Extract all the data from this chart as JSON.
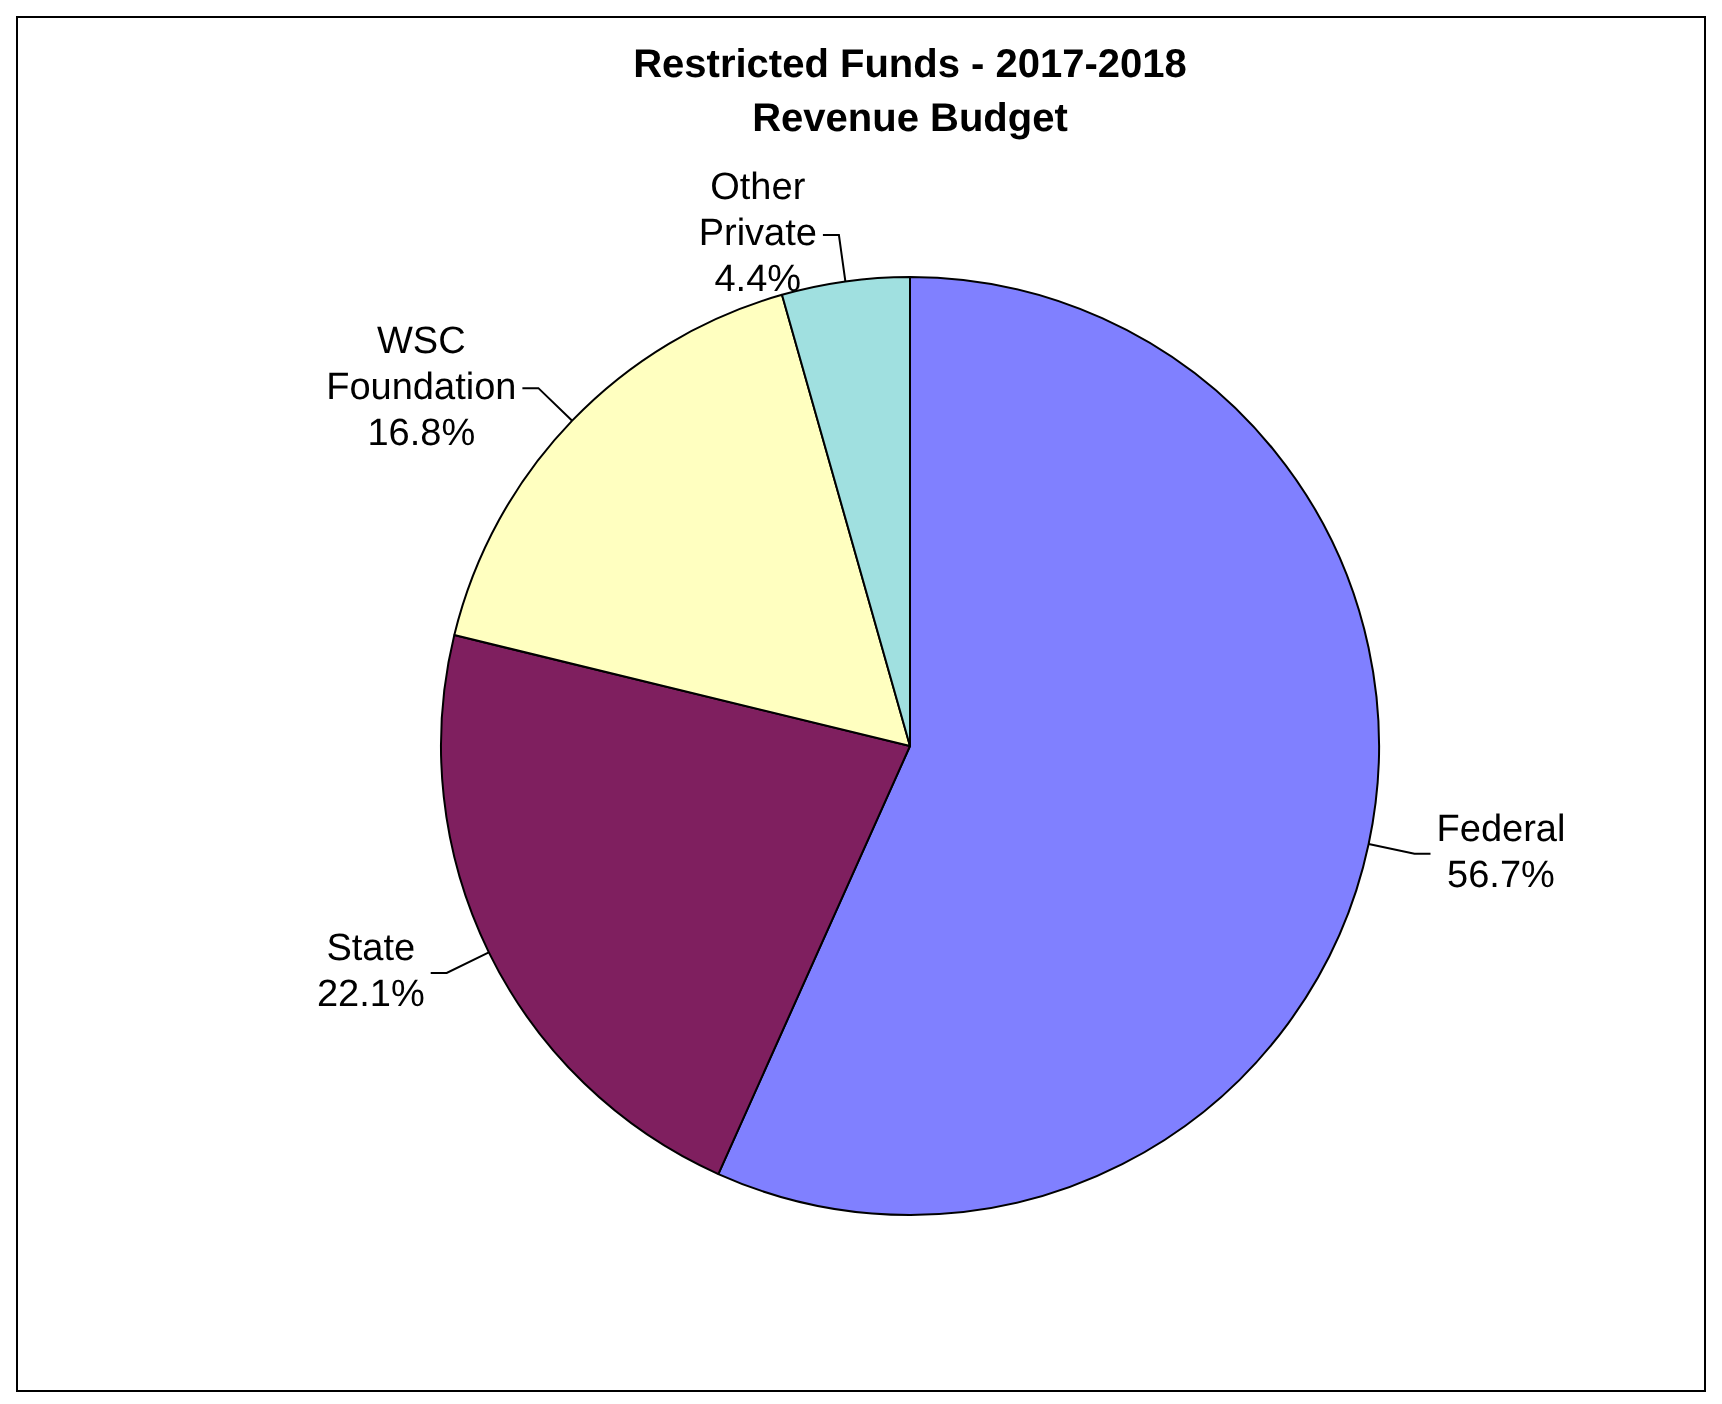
{
  "chart_data": {
    "type": "pie",
    "title": "Restricted Funds - 2017-2018 Revenue Budget",
    "categories": [
      "Federal",
      "State",
      "WSC Foundation",
      "Other Private"
    ],
    "values": [
      56.7,
      22.1,
      16.8,
      4.4
    ],
    "value_labels": [
      "56.7%",
      "22.1%",
      "16.8%",
      "4.4%"
    ],
    "colors": [
      "#8080ff",
      "#7f1f5f",
      "#ffffc0",
      "#a0e0e0"
    ],
    "legend": false
  }
}
